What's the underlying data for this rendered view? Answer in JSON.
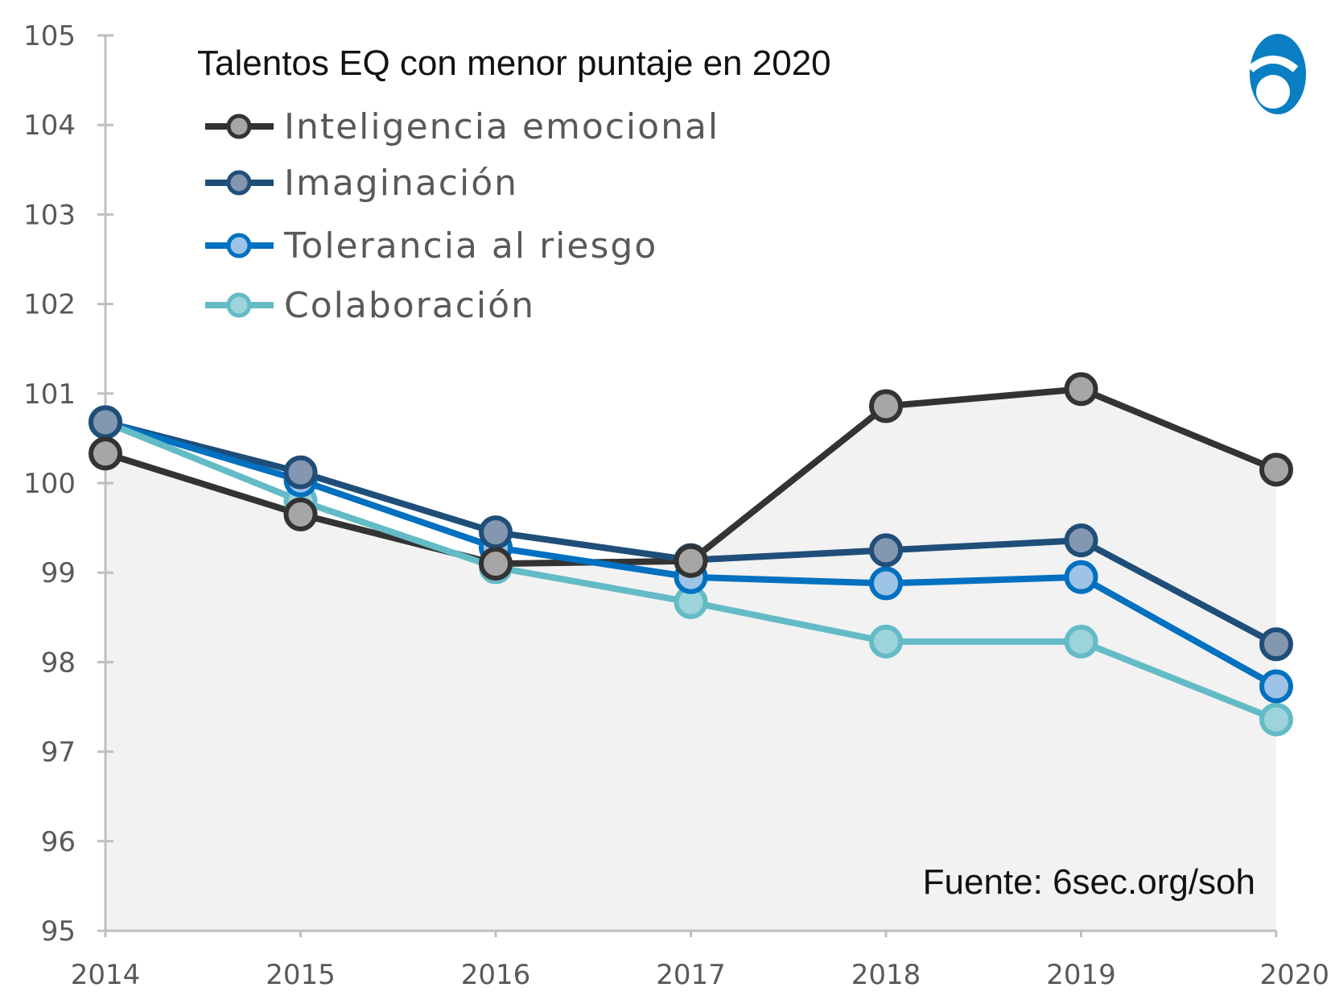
{
  "chart_data": {
    "type": "line",
    "title": "Talentos EQ con menor puntaje en 2020",
    "xlabel": "",
    "ylabel": "",
    "x": [
      "2014",
      "2015",
      "2016",
      "2017",
      "2018",
      "2019",
      "2020"
    ],
    "ylim": [
      95,
      105
    ],
    "yticks": [
      "95",
      "96",
      "97",
      "98",
      "99",
      "100",
      "101",
      "102",
      "103",
      "104",
      "105"
    ],
    "grid": false,
    "legend_position": "top-left",
    "series": [
      {
        "name": "Inteligencia emocional",
        "color": "#333333",
        "marker_fill": "#a6a6a6",
        "values": [
          100.33,
          99.65,
          99.1,
          99.13,
          100.86,
          101.05,
          100.15
        ]
      },
      {
        "name": "Imaginación",
        "color": "#1f4e79",
        "marker_fill": "#8497b0",
        "values": [
          100.68,
          100.12,
          99.45,
          99.14,
          99.25,
          99.36,
          98.2
        ]
      },
      {
        "name": "Tolerancia al riesgo",
        "color": "#0070c0",
        "marker_fill": "#9dc3e6",
        "values": [
          100.68,
          100.03,
          99.28,
          98.95,
          98.88,
          98.95,
          97.73
        ]
      },
      {
        "name": "Colaboración",
        "color": "#63bbc6",
        "marker_fill": "#9dd3da",
        "values": [
          100.68,
          99.8,
          99.06,
          98.67,
          98.23,
          98.23,
          97.36
        ]
      }
    ],
    "annotation": "Fuente: 6sec.org/soh",
    "shaded_area_color": "#f2f2f2",
    "logo_color": "#0a7ec2"
  }
}
